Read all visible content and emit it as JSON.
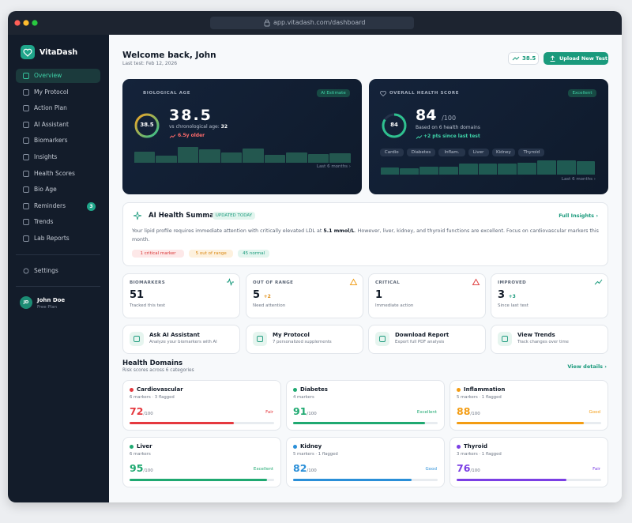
{
  "browser": {
    "url": "app.vitadash.com/dashboard"
  },
  "sidebar": {
    "brand": "VitaDash",
    "nav": [
      {
        "label": "Overview"
      },
      {
        "label": "My Protocol"
      },
      {
        "label": "Action Plan"
      },
      {
        "label": "AI Assistant"
      },
      {
        "label": "Biomarkers"
      },
      {
        "label": "Insights"
      },
      {
        "label": "Health Scores"
      },
      {
        "label": "Bio Age"
      },
      {
        "label": "Reminders",
        "badge": 3
      },
      {
        "label": "Trends"
      },
      {
        "label": "Lab Reports"
      }
    ],
    "settings": "Settings",
    "user": {
      "initials": "JD",
      "name": "John Doe",
      "plan": "Free Plan"
    }
  },
  "header": {
    "title": "Welcome back, John",
    "subtitle": "Last test: Feb 12, 2026",
    "score": 38.5,
    "button": "Upload New Test"
  },
  "bio_age": {
    "label": "BIOLOGICAL AGE",
    "tag": "AI Estimate",
    "value": 38.5,
    "comparison": "vs chronological age:",
    "chronological_age": 32,
    "difference": "6.5y older",
    "period": "Last 6 months ›",
    "trend": [
      14,
      9,
      20,
      17,
      13,
      18,
      10,
      13,
      11,
      12
    ]
  },
  "health_score": {
    "label": "OVERALL HEALTH SCORE",
    "tag": "Excellent",
    "value": 84,
    "out_of": {
      "value": 100,
      "label": "/100"
    },
    "basis": "Based on 6 health domains",
    "change": "+2 pts since last test",
    "tags": [
      "Cardio",
      "Diabetes",
      "Inflam.",
      "Liver",
      "Kidney",
      "Thyroid"
    ],
    "period": "Last 6 months ›",
    "trend": [
      9,
      8,
      10,
      10,
      14,
      14,
      14,
      15,
      18,
      18,
      17
    ]
  },
  "ai_summary": {
    "title": "AI Health Summary",
    "tag": "UPDATED TODAY",
    "link": "Full Insights ›",
    "text_before": "Your lipid profile requires immediate attention with critically elevated LDL at ",
    "text_bold": "5.1 mmol/L",
    "text_after": ". However, liver, kidney, and thyroid functions are excellent. Focus on cardiovascular markers this month.",
    "chips": [
      "1 critical marker",
      "5 out of range",
      "45 normal"
    ]
  },
  "stats": [
    {
      "label": "BIOMARKERS",
      "value": 51,
      "note": "Tracked this test"
    },
    {
      "label": "OUT OF RANGE",
      "value": 5,
      "delta": "+2",
      "note": "Need attention"
    },
    {
      "label": "CRITICAL",
      "value": 1,
      "note": "Immediate action"
    },
    {
      "label": "IMPROVED",
      "value": 3,
      "delta": "+3",
      "note": "Since last test"
    }
  ],
  "actions": [
    {
      "title": "Ask AI Assistant",
      "subtitle": "Analyze your biomarkers with AI"
    },
    {
      "title": "My Protocol",
      "subtitle": "7 personalized supplements"
    },
    {
      "title": "Download Report",
      "subtitle": "Export full PDF analysis"
    },
    {
      "title": "View Trends",
      "subtitle": "Track changes over time"
    }
  ],
  "health_domains": {
    "title": "Health Domains",
    "subtitle": "Risk scores across 6 categories",
    "link": "View details ›",
    "out_of": {
      "value": 100,
      "label": "/100"
    },
    "items": [
      {
        "name": "Cardiovascular",
        "meta": "6 markers · 3 flagged",
        "score": 72,
        "status": "Fair",
        "color": "#e5393f"
      },
      {
        "name": "Diabetes",
        "meta": "4 markers",
        "score": 91,
        "status": "Excellent",
        "color": "#1fa971"
      },
      {
        "name": "Inflammation",
        "meta": "5 markers · 1 flagged",
        "score": 88,
        "status": "Good",
        "color": "#f39c12"
      },
      {
        "name": "Liver",
        "meta": "6 markers",
        "score": 95,
        "status": "Excellent",
        "color": "#1fa971"
      },
      {
        "name": "Kidney",
        "meta": "5 markers · 1 flagged",
        "score": 82,
        "status": "Good",
        "color": "#2a8fd8"
      },
      {
        "name": "Thyroid",
        "meta": "3 markers · 1 flagged",
        "score": 76,
        "status": "Fair",
        "color": "#7b3fe4"
      }
    ]
  }
}
